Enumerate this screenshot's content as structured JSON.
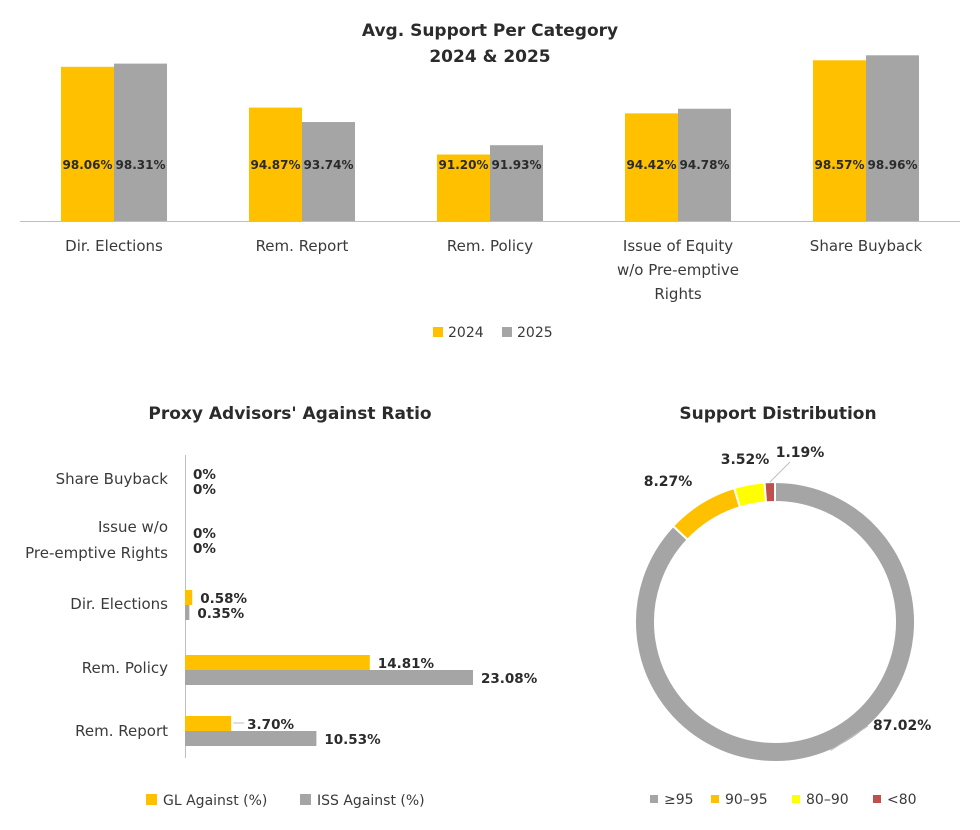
{
  "colors": {
    "gold": "#FFC000",
    "gray": "#A5A5A5",
    "yellow": "#FFFF00",
    "red": "#C0504D",
    "axis": "#BFBFBF"
  },
  "chart_data": [
    {
      "type": "bar",
      "title": "Avg. Support Per Category",
      "subtitle": "2024 & 2025",
      "categories": [
        [
          "Dir. Elections"
        ],
        [
          "Rem. Report"
        ],
        [
          "Rem. Policy"
        ],
        [
          "Issue of Equity",
          "w/o Pre-emptive",
          "Rights"
        ],
        [
          "Share Buyback"
        ]
      ],
      "series": [
        {
          "name": "2024",
          "values": [
            98.06,
            94.87,
            91.2,
            94.42,
            98.57
          ],
          "labels": [
            "98.06%",
            "94.87%",
            "91.20%",
            "94.42%",
            "98.57%"
          ]
        },
        {
          "name": "2025",
          "values": [
            98.31,
            93.74,
            91.93,
            94.78,
            98.96
          ],
          "labels": [
            "98.31%",
            "93.74%",
            "91.93%",
            "94.78%",
            "98.96%"
          ]
        }
      ],
      "ylim": [
        86,
        100
      ],
      "legend": "bottom"
    },
    {
      "type": "bar",
      "orientation": "horizontal",
      "title": "Proxy Advisors' Against Ratio",
      "categories": [
        [
          "Share Buyback"
        ],
        [
          "Issue w/o",
          "Pre-emptive Rights"
        ],
        [
          "Dir. Elections"
        ],
        [
          "Rem. Policy"
        ],
        [
          "Rem. Report"
        ]
      ],
      "series": [
        {
          "name": "GL Against (%)",
          "values": [
            0,
            0,
            0.58,
            14.81,
            3.7
          ],
          "labels": [
            "0%",
            "0%",
            "0.58%",
            "14.81%",
            "3.70%"
          ]
        },
        {
          "name": "ISS Against (%)",
          "values": [
            0,
            0,
            0.35,
            23.08,
            10.53
          ],
          "labels": [
            "0%",
            "0%",
            "0.35%",
            "23.08%",
            "10.53%"
          ]
        }
      ],
      "xlim": [
        0,
        23.08
      ],
      "legend": "bottom"
    },
    {
      "type": "pie",
      "style": "donut",
      "title": "Support Distribution",
      "slices": [
        {
          "name": "≥95",
          "value": 87.02,
          "label": "87.02%",
          "color": "gray"
        },
        {
          "name": "90–95",
          "value": 8.27,
          "label": "8.27%",
          "color": "gold"
        },
        {
          "name": "80–90",
          "value": 3.52,
          "label": "3.52%",
          "color": "yellow"
        },
        {
          "name": "<80",
          "value": 1.19,
          "label": "1.19%",
          "color": "red"
        }
      ],
      "legend": "bottom"
    }
  ]
}
